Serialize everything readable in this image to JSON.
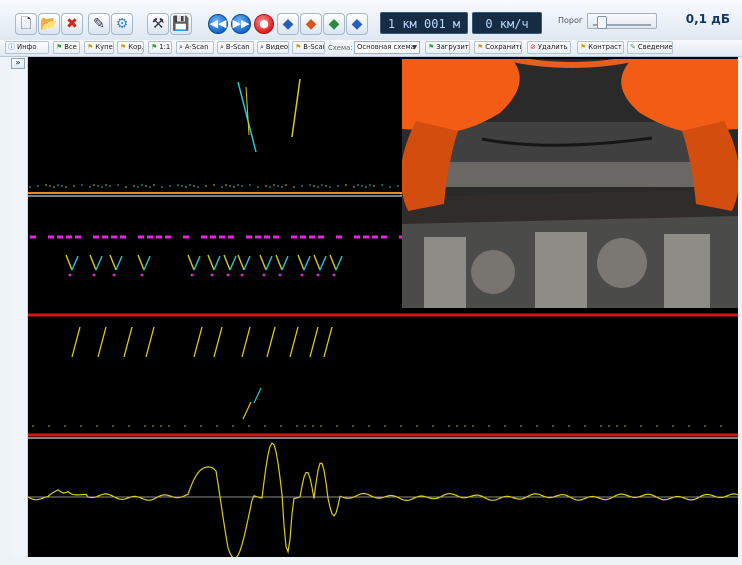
{
  "toolbar": {
    "icons": [
      "new-document-icon",
      "open-folder-icon",
      "delete-icon",
      "edit-icon",
      "settings-gear-icon",
      "tools-icon",
      "save-disk-icon",
      "rewind-icon",
      "fast-forward-icon",
      "record-icon",
      "layer-icon",
      "layer-icon",
      "layer-icon",
      "layer-icon"
    ],
    "distance_readout": "1 км 001 м",
    "speed_readout": "0 км/ч",
    "threshold_label": "Порог",
    "threshold_value": "0,1 дБ",
    "threshold_level_fraction": 0.1
  },
  "subtoolbar": {
    "info": "Инфо",
    "all": "Все",
    "coupe": "Купе",
    "kor": "Кор.",
    "one_to_one": "1:1",
    "a_scan": "A-Scan",
    "b_scan": "B-Scan",
    "video": "Видео",
    "b_scan_2": "B-Scan",
    "scheme_label": "Схема:",
    "scheme_value": "Основная схема",
    "load": "Загрузить",
    "save": "Сохранить",
    "delete": "Удалить",
    "contrast": "Контраст",
    "merge": "Сведение"
  },
  "left_panel": {
    "expand_symbol": "»"
  },
  "colors": {
    "yellow_signal": "#d8cc1a",
    "cyan_signal": "#25c9d2",
    "magenta_signal": "#ea22ea",
    "separator_red": "#d41616",
    "separator_orange": "#f08a1f"
  }
}
